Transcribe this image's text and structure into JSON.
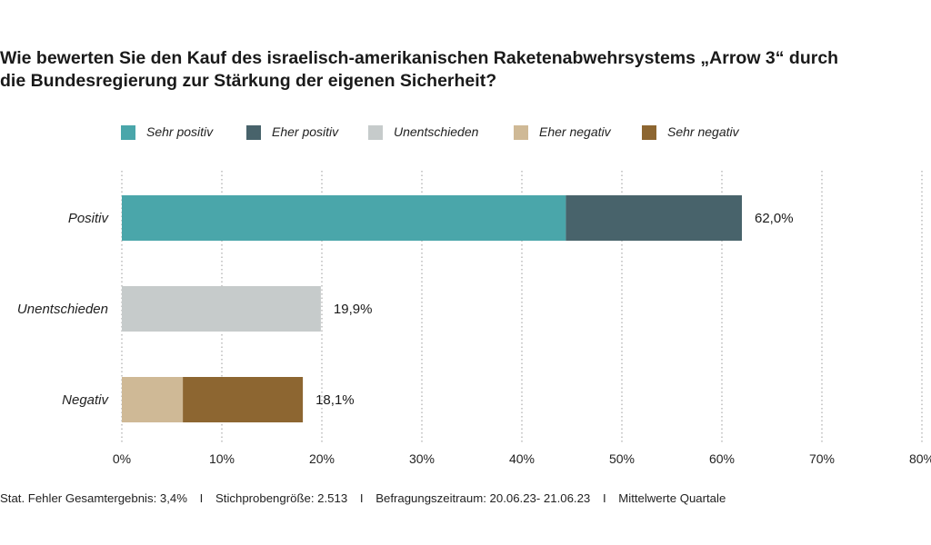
{
  "title_line1": "Wie bewerten Sie den Kauf des israelisch-amerikanischen Raketenabwehrsystems „Arrow 3“ durch",
  "title_line2": "die Bundesregierung zur Stärkung der eigenen Sicherheit?",
  "legend": [
    {
      "label": "Sehr positiv",
      "color": "#4aa6aa"
    },
    {
      "label": "Eher positiv",
      "color": "#48636b"
    },
    {
      "label": "Unentschieden",
      "color": "#c6cbcb"
    },
    {
      "label": "Eher negativ",
      "color": "#cfb996"
    },
    {
      "label": "Sehr negativ",
      "color": "#8d6631"
    }
  ],
  "footer": [
    "Stat. Fehler Gesamtergebnis: 3,4%",
    "Stichprobengröße: 2.513",
    "Befragungszeitraum: 20.06.23- 21.06.23",
    "Mittelwerte Quartale"
  ],
  "footer_separator": "I",
  "chart_data": {
    "type": "bar",
    "orientation": "horizontal",
    "stacked": true,
    "categories": [
      "Positiv",
      "Unentschieden",
      "Negativ"
    ],
    "series": [
      {
        "name": "Sehr positiv",
        "values": [
          44.4,
          0,
          0
        ]
      },
      {
        "name": "Eher positiv",
        "values": [
          17.6,
          0,
          0
        ]
      },
      {
        "name": "Unentschieden",
        "values": [
          0,
          19.9,
          0
        ]
      },
      {
        "name": "Eher negativ",
        "values": [
          0,
          0,
          6.1
        ]
      },
      {
        "name": "Sehr negativ",
        "values": [
          0,
          0,
          12.0
        ]
      }
    ],
    "totals_labels": [
      "62,0%",
      "19,9%",
      "18,1%"
    ],
    "totals": [
      62.0,
      19.9,
      18.1
    ],
    "xlim": [
      0,
      80
    ],
    "x_ticks": [
      0,
      10,
      20,
      30,
      40,
      50,
      60,
      70,
      80
    ],
    "x_tick_labels": [
      "0%",
      "10%",
      "20%",
      "30%",
      "40%",
      "50%",
      "60%",
      "70%",
      "80%"
    ],
    "grid": "vertical-dotted",
    "legend_position": "top"
  }
}
